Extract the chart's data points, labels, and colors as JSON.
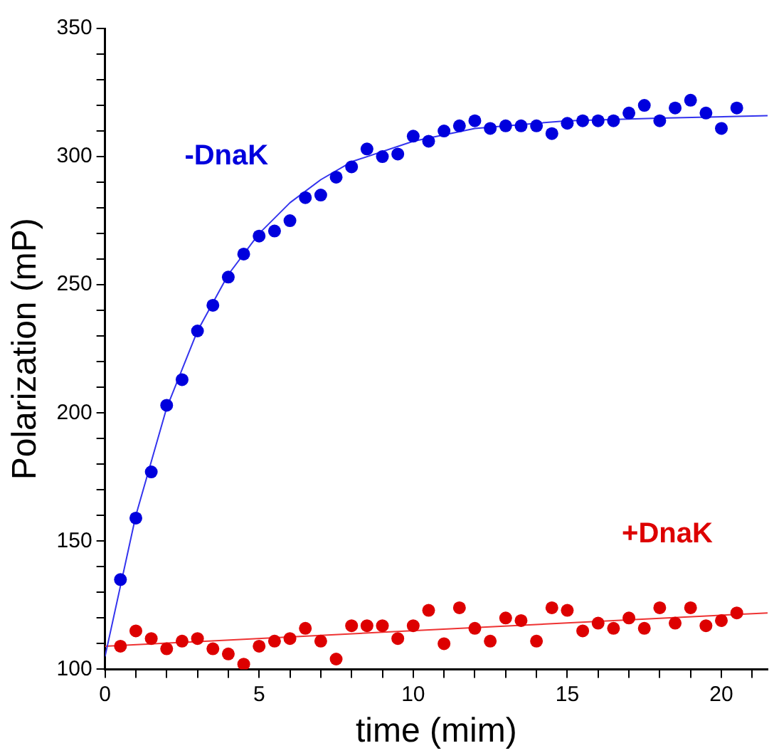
{
  "chart_data": {
    "type": "scatter",
    "xlabel": "time (mim)",
    "ylabel": "Polarization (mP)",
    "xlim": [
      0,
      21.5
    ],
    "ylim": [
      100,
      350
    ],
    "xticks": [
      0,
      {
        "value": 1,
        "label": null
      },
      {
        "value": 2,
        "label": null
      },
      {
        "value": 3,
        "label": null
      },
      {
        "value": 4,
        "label": null
      },
      5,
      {
        "value": 6,
        "label": null
      },
      {
        "value": 7,
        "label": null
      },
      {
        "value": 8,
        "label": null
      },
      {
        "value": 9,
        "label": null
      },
      10,
      {
        "value": 11,
        "label": null
      },
      {
        "value": 12,
        "label": null
      },
      {
        "value": 13,
        "label": null
      },
      {
        "value": 14,
        "label": null
      },
      15,
      {
        "value": 16,
        "label": null
      },
      {
        "value": 17,
        "label": null
      },
      {
        "value": 18,
        "label": null
      },
      {
        "value": 19,
        "label": null
      },
      20,
      {
        "value": 21,
        "label": null
      }
    ],
    "yticks": [
      100,
      {
        "value": 110,
        "label": null
      },
      {
        "value": 120,
        "label": null
      },
      {
        "value": 130,
        "label": null
      },
      {
        "value": 140,
        "label": null
      },
      150,
      {
        "value": 160,
        "label": null
      },
      {
        "value": 170,
        "label": null
      },
      {
        "value": 180,
        "label": null
      },
      {
        "value": 190,
        "label": null
      },
      200,
      {
        "value": 210,
        "label": null
      },
      {
        "value": 220,
        "label": null
      },
      {
        "value": 230,
        "label": null
      },
      {
        "value": 240,
        "label": null
      },
      250,
      {
        "value": 260,
        "label": null
      },
      {
        "value": 270,
        "label": null
      },
      {
        "value": 280,
        "label": null
      },
      {
        "value": 290,
        "label": null
      },
      300,
      {
        "value": 310,
        "label": null
      },
      {
        "value": 320,
        "label": null
      },
      {
        "value": 330,
        "label": null
      },
      {
        "value": 340,
        "label": null
      },
      350
    ],
    "grid": false,
    "legend": false,
    "marker": "circle",
    "x": [
      0.5,
      1,
      1.5,
      2,
      2.5,
      3,
      3.5,
      4,
      4.5,
      5,
      5.5,
      6,
      6.5,
      7,
      7.5,
      8,
      8.5,
      9,
      9.5,
      10,
      10.5,
      11,
      11.5,
      12,
      12.5,
      13,
      13.5,
      14,
      14.5,
      15,
      15.5,
      16,
      16.5,
      17,
      17.5,
      18,
      18.5,
      19,
      19.5,
      20,
      20.5
    ],
    "series": [
      {
        "name": "-DnaK",
        "color": "#0000dd",
        "values": [
          135,
          159,
          177,
          203,
          213,
          232,
          242,
          253,
          262,
          269,
          271,
          275,
          284,
          285,
          292,
          296,
          303,
          300,
          301,
          308,
          306,
          310,
          312,
          314,
          311,
          312,
          312,
          312,
          309,
          313,
          314,
          314,
          314,
          317,
          320,
          314,
          319,
          322,
          317,
          311,
          319
        ]
      },
      {
        "name": "+DnaK",
        "color": "#dd0000",
        "values": [
          109,
          115,
          112,
          108,
          111,
          112,
          108,
          106,
          102,
          109,
          111,
          112,
          116,
          111,
          104,
          117,
          117,
          117,
          112,
          117,
          123,
          110,
          124,
          116,
          111,
          120,
          119,
          111,
          124,
          123,
          115,
          118,
          116,
          120,
          116,
          124,
          118,
          124,
          117,
          119,
          122
        ]
      },
      {
        "type": "line",
        "marker": "none",
        "color": "#3333ee",
        "x": [
          0,
          1,
          2,
          3,
          4,
          5,
          6,
          7,
          8,
          10,
          12,
          15,
          18,
          21.5
        ],
        "values": [
          105,
          160,
          202,
          232,
          254,
          270,
          282,
          291,
          298,
          306,
          311,
          314,
          315,
          316
        ]
      },
      {
        "type": "line",
        "marker": "none",
        "color": "#ee3333",
        "x": [
          0,
          21.5
        ],
        "values": [
          109,
          122
        ]
      }
    ]
  }
}
